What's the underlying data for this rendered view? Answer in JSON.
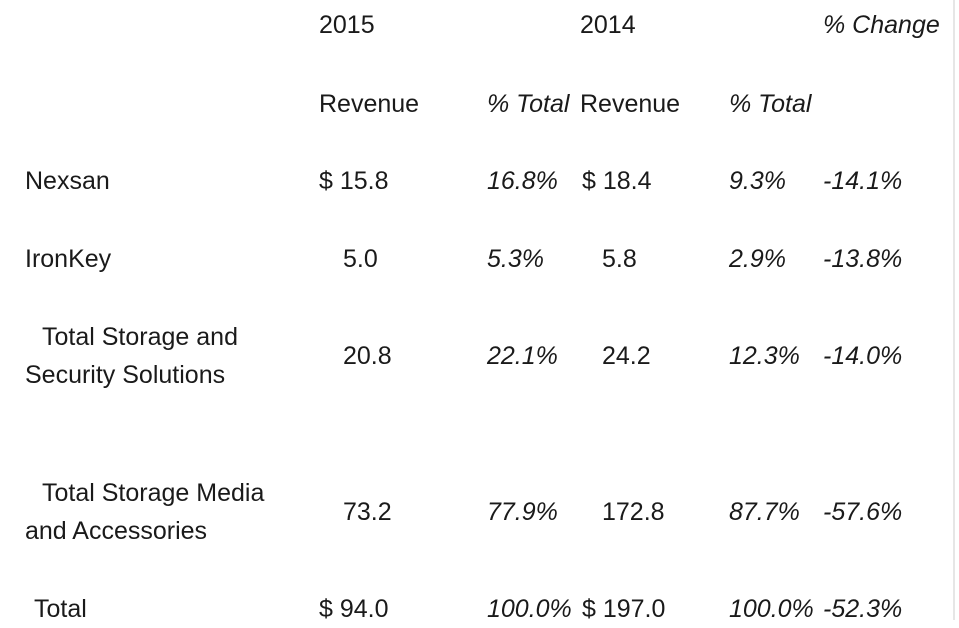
{
  "header": {
    "year_2015": "2015",
    "year_2014": "2014",
    "pct_change": "% Change",
    "revenue_2015": "Revenue",
    "pct_total_2015": "% Total",
    "revenue_2014": "Revenue",
    "pct_total_2014": "% Total"
  },
  "rows": [
    {
      "label": "Nexsan",
      "rev2015": "$ 15.8",
      "pct2015": "16.8%",
      "rev2014": "$ 18.4",
      "pct2014": "9.3%",
      "change": "-14.1%"
    },
    {
      "label": "IronKey",
      "rev2015": "5.0",
      "pct2015": "5.3%",
      "rev2014": "5.8",
      "pct2014": "2.9%",
      "change": "-13.8%"
    },
    {
      "label_line1": "Total Storage and",
      "label_line2": "Security Solutions",
      "rev2015": "20.8",
      "pct2015": "22.1%",
      "rev2014": "24.2",
      "pct2014": "12.3%",
      "change": "-14.0%"
    },
    {
      "label_line1": "Total Storage Media",
      "label_line2": "and Accessories",
      "rev2015": "73.2",
      "pct2015": "77.9%",
      "rev2014": "172.8",
      "pct2014": "87.7%",
      "change": "-57.6%"
    },
    {
      "label": "Total",
      "rev2015": "$ 94.0",
      "pct2015": "100.0%",
      "rev2014": "$ 197.0",
      "pct2014": "100.0%",
      "change": "-52.3%"
    }
  ]
}
